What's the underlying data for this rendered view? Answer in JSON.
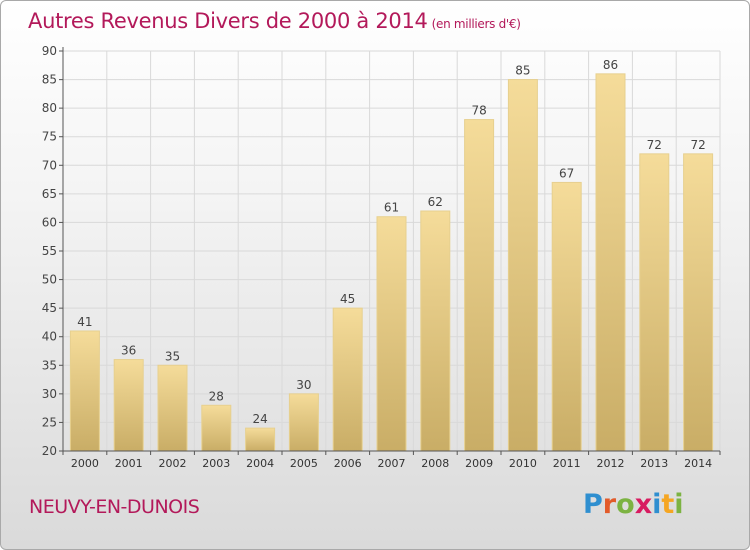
{
  "header": {
    "title": "Autres Revenus Divers de 2000 à 2014",
    "unit": "(en milliers d'€)"
  },
  "footer": {
    "town": "NEUVY-EN-DUNOIS",
    "logo": {
      "letters": [
        "P",
        "r",
        "o",
        "x",
        "i",
        "t",
        "i"
      ],
      "colors": [
        "#2f8fd0",
        "#e25b2a",
        "#7cb342",
        "#d81b60",
        "#2f8fd0",
        "#f5a623",
        "#7cb342"
      ]
    }
  },
  "chart_data": {
    "type": "bar",
    "title": "Autres Revenus Divers de 2000 à 2014",
    "subtitle": "(en milliers d'€)",
    "categories": [
      "2000",
      "2001",
      "2002",
      "2003",
      "2004",
      "2005",
      "2006",
      "2007",
      "2008",
      "2009",
      "2010",
      "2011",
      "2012",
      "2013",
      "2014"
    ],
    "values": [
      41,
      36,
      35,
      28,
      24,
      30,
      45,
      61,
      62,
      78,
      85,
      67,
      86,
      72,
      72
    ],
    "ylim": [
      20,
      90
    ],
    "yticks": [
      20,
      25,
      30,
      35,
      40,
      45,
      50,
      55,
      60,
      65,
      70,
      75,
      80,
      85,
      90
    ],
    "grid": true,
    "colors": {
      "bar_top": "#f5dc9a",
      "bar_bottom": "#c9ad66",
      "title": "#b3195a",
      "grid": "#d9d9d9",
      "axis": "#555555"
    }
  }
}
